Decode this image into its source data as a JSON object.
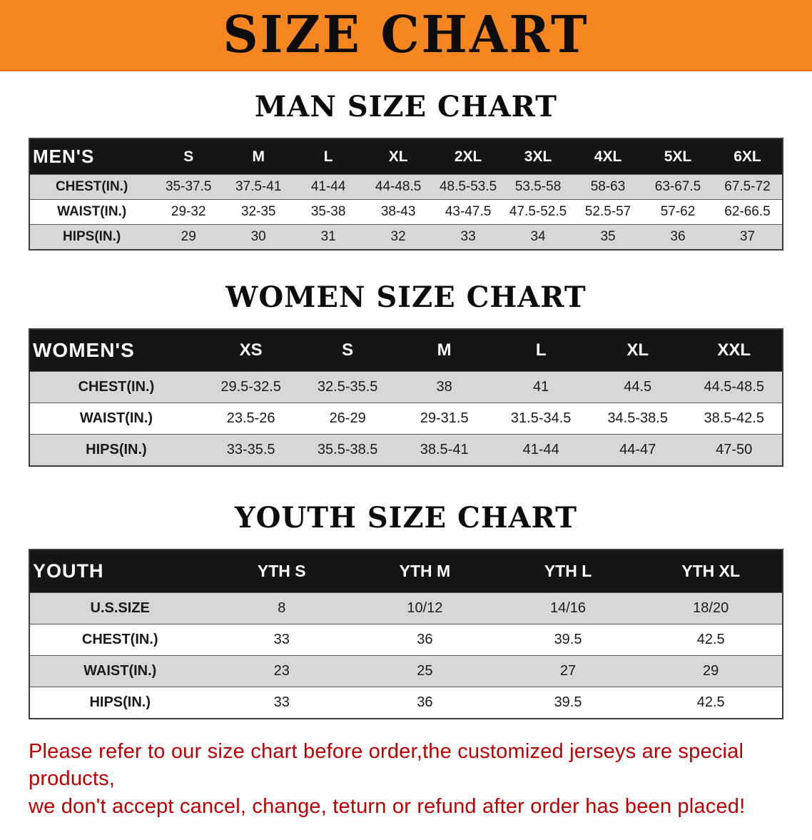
{
  "banner": {
    "title": "SIZE CHART",
    "bg_color": "#f6861f",
    "text_color": "#0d0d0d"
  },
  "chart_data": [
    {
      "type": "table",
      "id": "men",
      "title": "MAN SIZE CHART",
      "corner_label": "MEN'S",
      "columns": [
        "S",
        "M",
        "L",
        "XL",
        "2XL",
        "3XL",
        "4XL",
        "5XL",
        "6XL"
      ],
      "rows": [
        {
          "label": "CHEST(IN.)",
          "values": [
            "35-37.5",
            "37.5-41",
            "41-44",
            "44-48.5",
            "48.5-53.5",
            "53.5-58",
            "58-63",
            "63-67.5",
            "67.5-72"
          ]
        },
        {
          "label": "WAIST(IN.)",
          "values": [
            "29-32",
            "32-35",
            "35-38",
            "38-43",
            "43-47.5",
            "47.5-52.5",
            "52.5-57",
            "57-62",
            "62-66.5"
          ]
        },
        {
          "label": "HIPS(IN.)",
          "values": [
            "29",
            "30",
            "31",
            "32",
            "33",
            "34",
            "35",
            "36",
            "37"
          ]
        }
      ]
    },
    {
      "type": "table",
      "id": "women",
      "title": "WOMEN SIZE CHART",
      "corner_label": "WOMEN'S",
      "columns": [
        "XS",
        "S",
        "M",
        "L",
        "XL",
        "XXL"
      ],
      "rows": [
        {
          "label": "CHEST(IN.)",
          "values": [
            "29.5-32.5",
            "32.5-35.5",
            "38",
            "41",
            "44.5",
            "44.5-48.5"
          ]
        },
        {
          "label": "WAIST(IN.)",
          "values": [
            "23.5-26",
            "26-29",
            "29-31.5",
            "31.5-34.5",
            "34.5-38.5",
            "38.5-42.5"
          ]
        },
        {
          "label": "HIPS(IN.)",
          "values": [
            "33-35.5",
            "35.5-38.5",
            "38.5-41",
            "41-44",
            "44-47",
            "47-50"
          ]
        }
      ]
    },
    {
      "type": "table",
      "id": "youth",
      "title": "YOUTH SIZE CHART",
      "corner_label": "YOUTH",
      "columns": [
        "YTH S",
        "YTH M",
        "YTH L",
        "YTH XL"
      ],
      "rows": [
        {
          "label": "U.S.SIZE",
          "values": [
            "8",
            "10/12",
            "14/16",
            "18/20"
          ]
        },
        {
          "label": "CHEST(IN.)",
          "values": [
            "33",
            "36",
            "39.5",
            "42.5"
          ]
        },
        {
          "label": "WAIST(IN.)",
          "values": [
            "23",
            "25",
            "27",
            "29"
          ]
        },
        {
          "label": "HIPS(IN.)",
          "values": [
            "33",
            "36",
            "39.5",
            "42.5"
          ]
        }
      ]
    }
  ],
  "disclaimer": {
    "line1": "Please refer to our size chart before order,the customized jerseys are special products,",
    "line2": "we don't accept cancel, change, teturn or refund after order has been placed!",
    "text_color": "#c00000"
  }
}
